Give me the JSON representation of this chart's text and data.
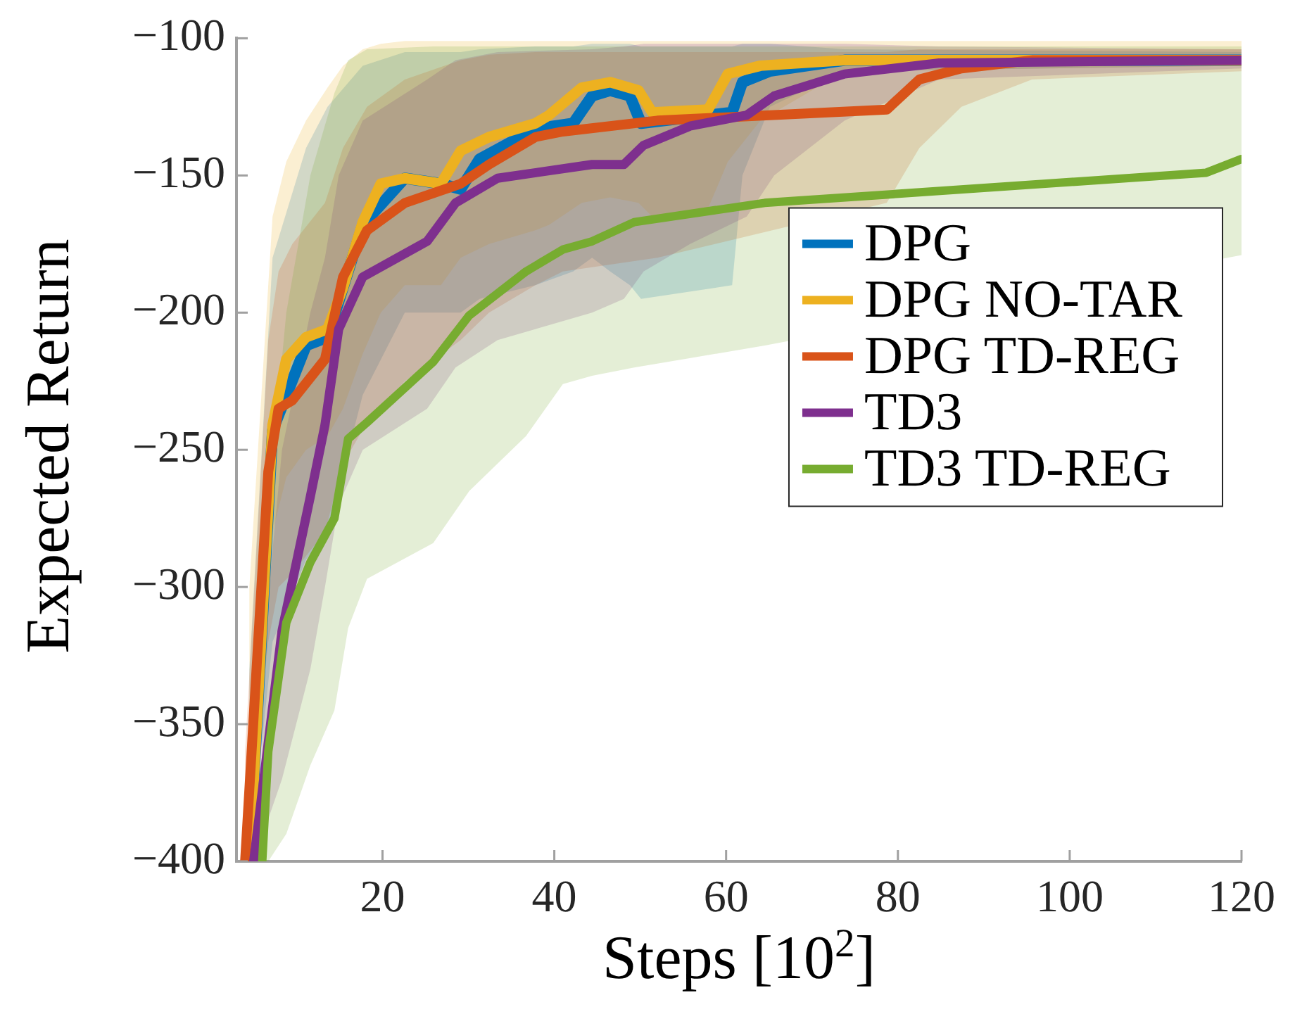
{
  "chart_data": {
    "type": "line",
    "xlabel": "Steps [10$^{2}$]",
    "ylabel": "Expected Return",
    "xlim": [
      3,
      120
    ],
    "ylim": [
      -400,
      -100
    ],
    "xticks": [
      20,
      40,
      60,
      80,
      100,
      120
    ],
    "yticks": [
      {
        "value": -400,
        "label": "−400"
      },
      {
        "value": -350,
        "label": "−350"
      },
      {
        "value": -300,
        "label": "−300"
      },
      {
        "value": -250,
        "label": "−250"
      },
      {
        "value": -200,
        "label": "−200"
      },
      {
        "value": -150,
        "label": "−150"
      },
      {
        "value": -100,
        "label": "−100"
      }
    ],
    "grid": false,
    "legend": "right",
    "marker": "none",
    "line_style": "solid",
    "series": [
      {
        "name": "DPG",
        "color": "#0072bd",
        "x": [
          4.5,
          7.2,
          11.1,
          13.6,
          17.7,
          22.6,
          26.8,
          29.1,
          31.3,
          37.8,
          42.2,
          44.4,
          46.5,
          48.8,
          50.1,
          60.7,
          61.9,
          65.1,
          73.8,
          120
        ],
        "values": [
          -400,
          -243,
          -212,
          -209,
          -168,
          -151,
          -153,
          -155,
          -144,
          -133,
          -131,
          -121,
          -119,
          -121,
          -131,
          -127,
          -116,
          -112,
          -108,
          -108
        ],
        "lower": [
          -400,
          -320,
          -290,
          -280,
          -230,
          -200,
          -200,
          -200,
          -195,
          -190,
          -185,
          -180,
          -185,
          -190,
          -195,
          -190,
          -150,
          -125,
          -112,
          -110
        ],
        "upper": [
          -330,
          -180,
          -140,
          -125,
          -110,
          -105,
          -105,
          -105,
          -104,
          -103,
          -103,
          -102,
          -102,
          -102,
          -103,
          -103,
          -102,
          -102,
          -104,
          -105
        ]
      },
      {
        "name": "DPG NO-TAR",
        "color": "#edb120",
        "x": [
          4.5,
          7.2,
          8.8,
          11.1,
          13.6,
          15.4,
          17.7,
          19.8,
          22.6,
          26.8,
          29.1,
          32.4,
          37.8,
          39.4,
          43.2,
          46.5,
          49.8,
          51.4,
          57.9,
          60.2,
          64,
          73.8,
          120
        ],
        "values": [
          -400,
          -241,
          -217,
          -209,
          -206,
          -191,
          -167,
          -153,
          -151,
          -153,
          -141,
          -136,
          -131,
          -128,
          -118,
          -116,
          -119,
          -127,
          -126,
          -113,
          -110,
          -108,
          -108
        ],
        "lower": [
          -400,
          -280,
          -260,
          -250,
          -245,
          -235,
          -215,
          -200,
          -190,
          -190,
          -180,
          -175,
          -170,
          -168,
          -160,
          -158,
          -160,
          -165,
          -162,
          -145,
          -130,
          -112,
          -110
        ],
        "upper": [
          -300,
          -165,
          -145,
          -130,
          -118,
          -110,
          -104,
          -102,
          -101,
          -101,
          -101,
          -101,
          -101,
          -101,
          -101,
          -101,
          -101,
          -101,
          -101,
          -101,
          -101,
          -101,
          -101
        ]
      },
      {
        "name": "DPG TD-REG",
        "color": "#d95319",
        "x": [
          4,
          6.7,
          7.9,
          9.5,
          13.3,
          15.4,
          18.2,
          22.6,
          29.1,
          32.4,
          37.8,
          41,
          52,
          78.7,
          82.5,
          87.4,
          95.6,
          120
        ],
        "values": [
          -400,
          -258,
          -235,
          -232,
          -217,
          -187,
          -170,
          -160,
          -153,
          -146,
          -136,
          -134,
          -130,
          -126,
          -115,
          -111,
          -108,
          -108
        ],
        "lower": [
          -400,
          -320,
          -300,
          -295,
          -280,
          -255,
          -240,
          -225,
          -210,
          -200,
          -190,
          -185,
          -180,
          -160,
          -140,
          -125,
          -115,
          -112
        ],
        "upper": [
          -360,
          -210,
          -185,
          -175,
          -160,
          -140,
          -125,
          -115,
          -108,
          -106,
          -105,
          -105,
          -105,
          -105,
          -104,
          -104,
          -104,
          -104
        ]
      },
      {
        "name": "TD3",
        "color": "#7e2f8e",
        "x": [
          5,
          8.3,
          11.6,
          13.3,
          14.9,
          17.7,
          25.2,
          28.5,
          33.4,
          44.4,
          48.1,
          50.4,
          55.8,
          62.4,
          65.6,
          73.8,
          84.8,
          120
        ],
        "values": [
          -400,
          -316,
          -267,
          -241,
          -206,
          -187,
          -174,
          -160,
          -151,
          -146,
          -146,
          -139,
          -132,
          -128,
          -121,
          -113,
          -109,
          -108
        ],
        "lower": [
          -400,
          -370,
          -330,
          -300,
          -270,
          -250,
          -235,
          -220,
          -210,
          -200,
          -195,
          -185,
          -175,
          -165,
          -150,
          -130,
          -115,
          -111
        ],
        "upper": [
          -360,
          -250,
          -200,
          -180,
          -150,
          -130,
          -115,
          -108,
          -105,
          -104,
          -103,
          -102,
          -102,
          -102,
          -102,
          -102,
          -103,
          -104
        ]
      },
      {
        "name": "TD3 TD-REG",
        "color": "#77ac30",
        "x": [
          6,
          6.7,
          8.8,
          11.6,
          14.4,
          16,
          18.2,
          25.9,
          30.1,
          36.7,
          41,
          44.4,
          49.3,
          64.5,
          115.9,
          120
        ],
        "values": [
          -400,
          -360,
          -313,
          -291,
          -275,
          -246,
          -240,
          -218,
          -201,
          -185,
          -177,
          -174,
          -167,
          -160,
          -149,
          -144
        ],
        "lower": [
          -400,
          -400,
          -390,
          -365,
          -345,
          -315,
          -297,
          -284,
          -265,
          -245,
          -226,
          -223,
          -220,
          -212,
          null,
          -179
        ],
        "upper": [
          -330,
          -270,
          -200,
          -150,
          -120,
          -108,
          -104,
          -103,
          -103,
          -103,
          -103,
          -103,
          -103,
          -103,
          null,
          -103
        ]
      }
    ]
  }
}
